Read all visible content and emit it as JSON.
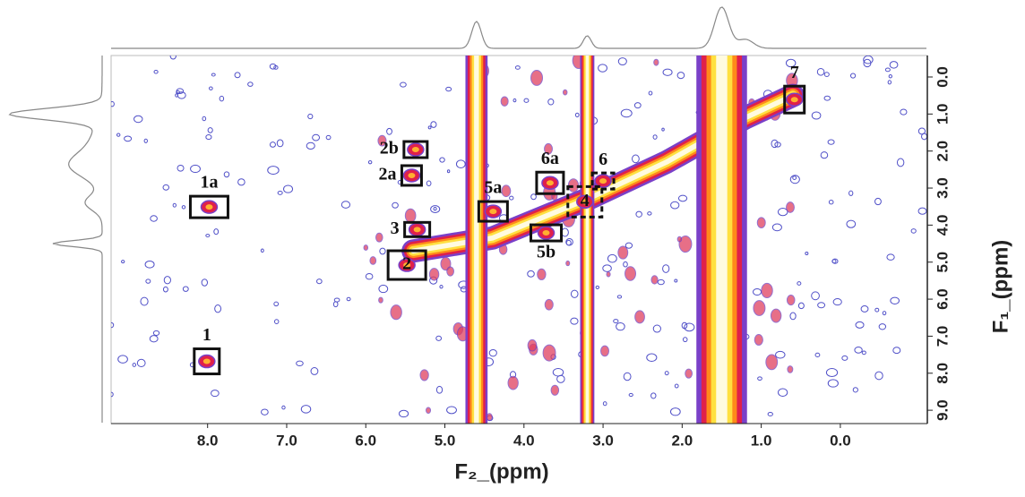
{
  "chart_data": {
    "type": "contour",
    "x_label": "F₂_(ppm)",
    "y_label": "F₁_(ppm)",
    "xlim": [
      9.22,
      -1.1
    ],
    "ylim": [
      -0.58,
      9.36
    ],
    "xticks": [
      {
        "value": 8,
        "label": "8.0"
      },
      {
        "value": 7,
        "label": "7.0"
      },
      {
        "value": 6,
        "label": "6.0"
      },
      {
        "value": 5,
        "label": "5.0"
      },
      {
        "value": 4,
        "label": "4.0"
      },
      {
        "value": 3,
        "label": "3.0"
      },
      {
        "value": 2,
        "label": "2.0"
      },
      {
        "value": 1,
        "label": "1.0"
      },
      {
        "value": 0,
        "label": "0.0"
      }
    ],
    "yticks": [
      {
        "value": 0,
        "label": "0.0"
      },
      {
        "value": 1,
        "label": "1.0"
      },
      {
        "value": 2,
        "label": "2.0"
      },
      {
        "value": 3,
        "label": "3.0"
      },
      {
        "value": 4,
        "label": "4.0"
      },
      {
        "value": 5,
        "label": "5.0"
      },
      {
        "value": 6,
        "label": "6.0"
      },
      {
        "value": 7,
        "label": "7.0"
      },
      {
        "value": 8,
        "label": "8.0"
      },
      {
        "value": 9,
        "label": "9.0"
      }
    ],
    "bands": [
      {
        "x": 4.6,
        "width": 0.14
      },
      {
        "x": 3.2,
        "width": 0.09
      },
      {
        "x": 1.5,
        "width": 0.32
      }
    ],
    "peaks": [
      {
        "label": "1a",
        "x": 7.98,
        "y": 3.51,
        "dashed": false
      },
      {
        "label": "1",
        "x": 8.01,
        "y": 7.68,
        "dashed": false
      },
      {
        "label": "2b",
        "x": 5.37,
        "y": 1.96,
        "dashed": false
      },
      {
        "label": "2a",
        "x": 5.42,
        "y": 2.66,
        "dashed": false
      },
      {
        "label": "3",
        "x": 5.35,
        "y": 4.12,
        "dashed": false
      },
      {
        "label": "2",
        "x": 5.48,
        "y": 5.08,
        "dashed": false
      },
      {
        "label": "5a",
        "x": 4.39,
        "y": 3.63,
        "dashed": false
      },
      {
        "label": "5b",
        "x": 3.72,
        "y": 4.21,
        "dashed": false
      },
      {
        "label": "6a",
        "x": 3.67,
        "y": 2.86,
        "dashed": false
      },
      {
        "label": "6",
        "x": 3.0,
        "y": 2.81,
        "dashed": true
      },
      {
        "label": "4",
        "x": 3.23,
        "y": 3.37,
        "dashed": true
      },
      {
        "label": "7",
        "x": 0.58,
        "y": 0.61,
        "dashed": false
      }
    ]
  }
}
